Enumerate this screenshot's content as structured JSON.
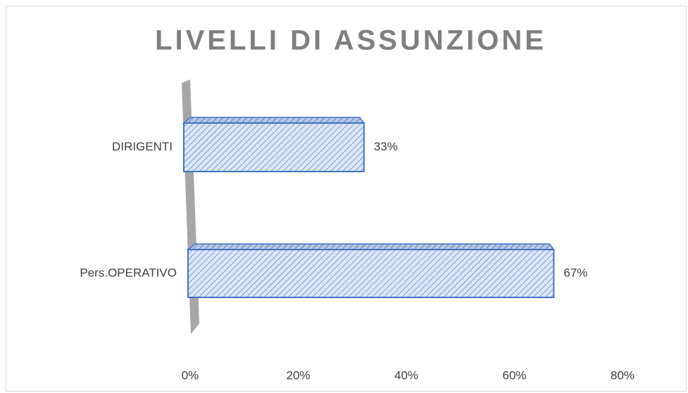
{
  "chart_data": {
    "type": "hbar",
    "title": "LIVELLI DI ASSUNZIONE",
    "categories": [
      "DIRIGENTI",
      "Pers.OPERATIVO"
    ],
    "values": [
      33,
      67
    ],
    "value_labels": [
      "33%",
      "67%"
    ],
    "color": "#4472c4",
    "xlim": [
      0,
      80
    ],
    "xticks": [
      {
        "value": 0,
        "label": "0%"
      },
      {
        "value": 20,
        "label": "20%"
      },
      {
        "value": 40,
        "label": "40%"
      },
      {
        "value": 60,
        "label": "60%"
      },
      {
        "value": 80,
        "label": "80%"
      }
    ],
    "grid": false
  }
}
